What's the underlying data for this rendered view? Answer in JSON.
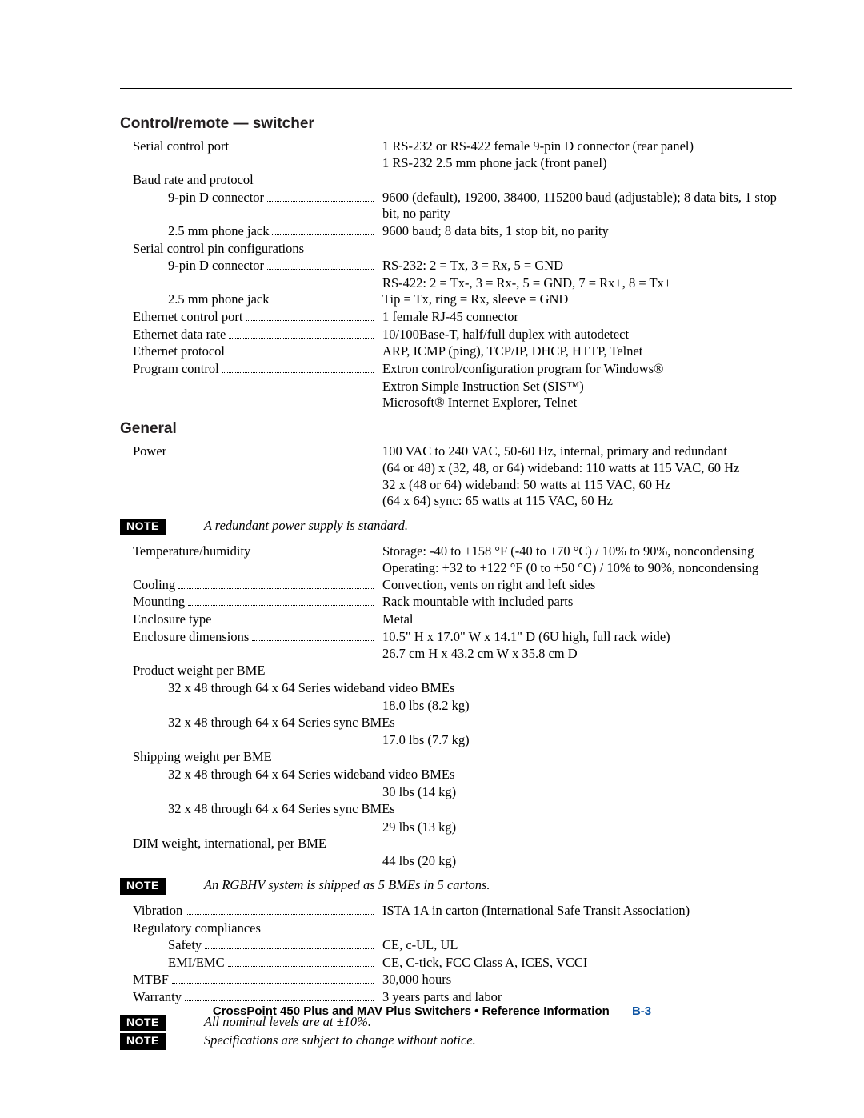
{
  "rule_color": "#000000",
  "sections": {
    "control_remote": {
      "heading": "Control/remote — switcher",
      "rows": [
        {
          "label": "Serial control port",
          "value": "1 RS-232 or RS-422 female 9-pin D connector (rear panel)"
        },
        {
          "value_only": "1 RS-232 2.5 mm phone jack (front panel)"
        },
        {
          "no_leader": true,
          "label": "Baud rate and protocol"
        },
        {
          "sub": true,
          "label": "9-pin D connector",
          "value": "9600 (default), 19200, 38400, 115200 baud (adjustable); 8 data bits, 1 stop bit, no parity"
        },
        {
          "sub": true,
          "label": "2.5 mm phone jack",
          "value": "9600 baud; 8 data bits, 1 stop bit, no parity"
        },
        {
          "no_leader": true,
          "label": "Serial control pin configurations"
        },
        {
          "sub": true,
          "label": "9-pin D connector",
          "value": "RS-232: 2 = Tx, 3 = Rx, 5 = GND"
        },
        {
          "value_only": "RS-422: 2 = Tx-, 3 = Rx-, 5 = GND, 7 = Rx+, 8 = Tx+"
        },
        {
          "sub": true,
          "label": "2.5 mm phone jack",
          "value": "Tip = Tx, ring = Rx, sleeve = GND"
        },
        {
          "label": "Ethernet control port",
          "value": "1 female RJ-45 connector"
        },
        {
          "label": "Ethernet data rate",
          "value": "10/100Base-T, half/full duplex with autodetect"
        },
        {
          "label": "Ethernet protocol",
          "value": "ARP, ICMP (ping), TCP/IP, DHCP, HTTP, Telnet"
        },
        {
          "label": "Program control",
          "value": "Extron control/configuration program for Windows®"
        },
        {
          "value_only": "Extron Simple Instruction Set (SIS™)"
        },
        {
          "value_only": "Microsoft® Internet Explorer, Telnet"
        }
      ]
    },
    "general": {
      "heading": "General",
      "rows_a": [
        {
          "label": "Power",
          "value": "100 VAC to 240 VAC, 50-60 Hz, internal, primary and redundant"
        },
        {
          "value_only": "(64 or 48) x (32, 48, or 64) wideband: 110 watts at 115 VAC, 60 Hz"
        },
        {
          "value_only": "32 x (48 or 64) wideband: 50 watts at 115 VAC, 60 Hz"
        },
        {
          "value_only": "(64 x 64) sync: 65 watts at 115 VAC, 60 Hz"
        }
      ],
      "note_a": "A redundant power supply is standard.",
      "rows_b": [
        {
          "label": "Temperature/humidity",
          "value": "Storage: -40 to +158 °F (-40 to +70 °C) / 10% to 90%, noncondensing"
        },
        {
          "value_only": "Operating: +32 to +122 °F (0 to +50 °C) / 10% to 90%, noncondensing"
        },
        {
          "label": "Cooling",
          "value": "Convection, vents on right and left sides"
        },
        {
          "label": "Mounting",
          "value": "Rack mountable with included parts"
        },
        {
          "label": "Enclosure type",
          "value": "Metal"
        },
        {
          "label": "Enclosure dimensions",
          "value": "10.5\" H x 17.0\" W x 14.1\" D (6U high, full rack wide)"
        },
        {
          "value_only": "26.7 cm H x 43.2 cm W x 35.8 cm D"
        },
        {
          "no_leader": true,
          "label": "Product weight per BME"
        },
        {
          "indent2": "32 x 48 through 64 x 64 Series wideband video BMEs"
        },
        {
          "value_only": "18.0 lbs (8.2 kg)"
        },
        {
          "indent2": "32 x 48 through 64 x 64 Series sync BMEs"
        },
        {
          "value_only": "17.0 lbs (7.7 kg)"
        },
        {
          "no_leader": true,
          "label": "Shipping weight per BME"
        },
        {
          "indent2": "32 x 48 through 64 x 64 Series wideband video BMEs"
        },
        {
          "value_only": "30 lbs (14 kg)"
        },
        {
          "indent2": "32 x 48 through 64 x 64 Series sync BMEs"
        },
        {
          "value_only": "29 lbs (13 kg)"
        },
        {
          "no_leader": true,
          "label": "DIM weight, international,  per BME"
        },
        {
          "value_only": "44 lbs (20 kg)"
        }
      ],
      "note_b": "An RGBHV system is shipped as 5 BMEs in 5 cartons.",
      "rows_c": [
        {
          "label": "Vibration",
          "value": "ISTA 1A in carton (International Safe Transit Association)"
        },
        {
          "no_leader": true,
          "label": "Regulatory compliances"
        },
        {
          "sub": true,
          "label": "Safety",
          "value": "CE, c-UL, UL"
        },
        {
          "sub": true,
          "label": "EMI/EMC",
          "value": "CE, C-tick, FCC Class A, ICES, VCCI"
        },
        {
          "label": "MTBF",
          "value": "30,000 hours"
        },
        {
          "label": "Warranty",
          "value": "3 years parts and labor"
        }
      ],
      "notes_end": [
        "All nominal levels are at ±10%.",
        "Specifications are subject to change without notice."
      ]
    }
  },
  "note_badge_label": "NOTE",
  "footer": {
    "text": "CrossPoint 450 Plus and MAV Plus Switchers • Reference Information",
    "page": "B-3",
    "page_color": "#1157a5"
  }
}
